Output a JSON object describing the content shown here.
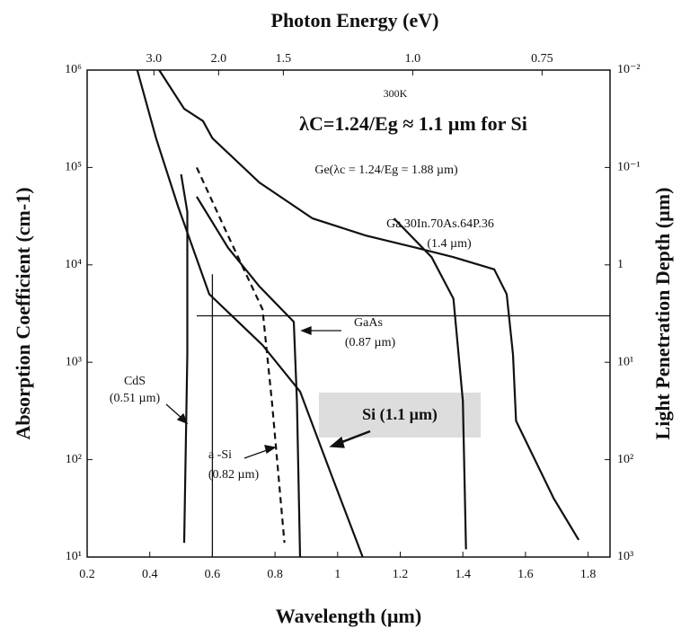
{
  "chart_data": {
    "type": "line",
    "title": "Photon Energy (eV)",
    "x_label": "Wavelength (µm)",
    "y_label": "Absorption Coefficient (cm-1)",
    "y2_label": "Light Penetration Depth (µm)",
    "xlim": [
      0.2,
      1.87
    ],
    "xticks": [
      0.2,
      0.4,
      0.6,
      0.8,
      1,
      1.2,
      1.4,
      1.6,
      1.8
    ],
    "x2lim": [
      6.2,
      0.663
    ],
    "x2scale": "reciprocal",
    "x2ticks": [
      {
        "value": 3,
        "label": "3.0"
      },
      {
        "value": 2,
        "label": "2.0"
      },
      {
        "value": 1.5,
        "label": "1.5"
      },
      {
        "value": 1,
        "label": "1.0"
      },
      {
        "value": 0.75,
        "label": "0.75"
      }
    ],
    "yscale": "log",
    "ylim": [
      10,
      1000000
    ],
    "yticks": [
      {
        "value": 1000000,
        "label": "10⁶"
      },
      {
        "value": 100000,
        "label": "10⁵"
      },
      {
        "value": 10000,
        "label": "10⁴"
      },
      {
        "value": 1000,
        "label": "10³"
      },
      {
        "value": 100,
        "label": "10²"
      },
      {
        "value": 10,
        "label": "10¹"
      }
    ],
    "y2scale": "log",
    "y2lim": [
      1000,
      0.01
    ],
    "y2ticks": [
      {
        "value": 0.01,
        "label": "10⁻²"
      },
      {
        "value": 0.1,
        "label": "10⁻¹"
      },
      1,
      {
        "value": 10,
        "label": "10¹"
      },
      {
        "value": 100,
        "label": "10²"
      },
      {
        "value": 1000,
        "label": "10³"
      }
    ],
    "annotations": [
      "300K",
      "λC=1.24/Eg ≈ 1.1 µm for Si"
    ],
    "hline": {
      "y": 3000,
      "x_from": 0.55
    },
    "vline": {
      "x": 0.6,
      "y_to": 8000
    },
    "series": [
      {
        "name": "Ge(λc = 1.24/Eg = 1.88 µm)",
        "color": "#111",
        "dash": false,
        "x": [
          0.43,
          0.51,
          0.57,
          0.6,
          0.75,
          0.92,
          1.09,
          1.25,
          1.37,
          1.5,
          1.54,
          1.56,
          1.57,
          1.69,
          1.77
        ],
        "values": [
          1000000,
          400000,
          300000,
          200000,
          70000,
          30000,
          20000,
          15000,
          12000,
          9000,
          5000,
          1200,
          250,
          40,
          15
        ]
      },
      {
        "name": "Si (1.1 µm)",
        "color": "#111",
        "dash": false,
        "x": [
          0.36,
          0.42,
          0.49,
          0.59,
          0.76,
          0.88,
          0.98,
          1.08
        ],
        "values": [
          1000000,
          200000,
          40000,
          5000,
          1500,
          500,
          70,
          10
        ]
      },
      {
        "name": "GaAs",
        "note": "(0.87 µm)",
        "color": "#111",
        "dash": false,
        "x": [
          0.55,
          0.65,
          0.75,
          0.86,
          0.87,
          0.88
        ],
        "values": [
          50000,
          15000,
          6000,
          2600,
          400,
          10
        ]
      },
      {
        "name": "a -Si",
        "note": "(0.82 µm)",
        "color": "#111",
        "dash": true,
        "x": [
          0.55,
          0.65,
          0.76,
          0.79,
          0.83
        ],
        "values": [
          100000,
          20000,
          3500,
          400,
          14
        ]
      },
      {
        "name": "CdS",
        "note": "(0.51 µm)",
        "color": "#111",
        "dash": false,
        "x": [
          0.5,
          0.52,
          0.52,
          0.51
        ],
        "values": [
          85000,
          35000,
          1200,
          14
        ]
      },
      {
        "name": "Ga.30In.70As.64P.36",
        "note": "(1.4 µm)",
        "color": "#111",
        "dash": false,
        "x": [
          1.18,
          1.3,
          1.37,
          1.4,
          1.41
        ],
        "values": [
          30000,
          12000,
          4500,
          400,
          12
        ]
      }
    ]
  }
}
